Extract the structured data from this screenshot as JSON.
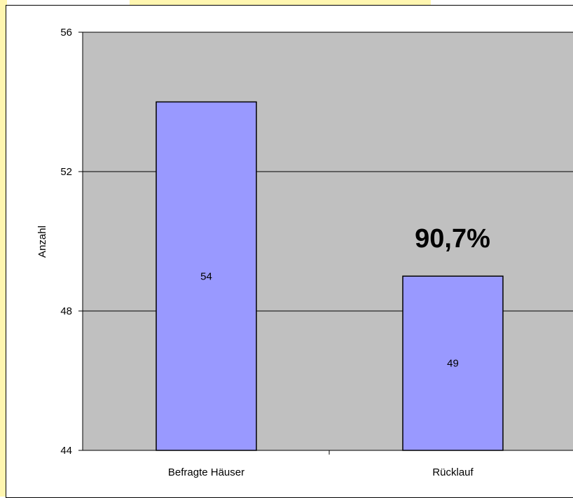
{
  "chart_data": {
    "type": "bar",
    "categories": [
      "Befragte Häuser",
      "Rücklauf"
    ],
    "values": [
      54,
      49
    ],
    "data_labels": [
      "54",
      "49"
    ],
    "ylabel": "Anzahl",
    "xlabel": "",
    "title": "",
    "ylim": [
      44,
      56
    ],
    "yticks": [
      "44",
      "48",
      "52",
      "56"
    ],
    "ytick_values": [
      44,
      48,
      52,
      56
    ],
    "annotation": "90,7%",
    "grid": true,
    "legend": "none",
    "colors": {
      "bar": "#9999ff",
      "plot_area": "#c0c0c0",
      "gridline": "#000000",
      "frame_accent": "#fff6b0"
    }
  }
}
